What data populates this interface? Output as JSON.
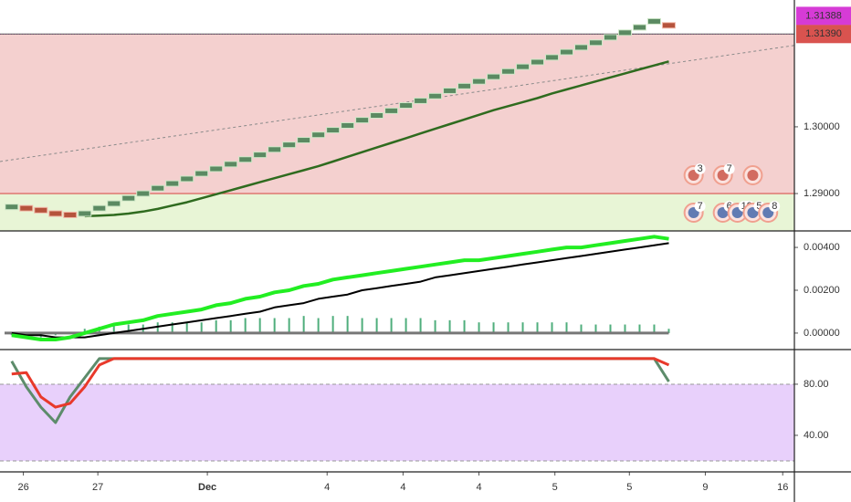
{
  "chart_data": [
    {
      "type": "renko",
      "x": [
        0,
        1,
        2,
        3,
        4,
        5,
        6,
        7,
        8,
        9,
        10,
        11,
        12,
        13,
        14,
        15,
        16,
        17,
        18,
        19,
        20,
        21,
        22,
        23,
        24,
        25,
        26,
        27,
        28,
        29,
        30,
        31,
        32,
        33,
        34,
        35,
        36,
        37,
        38,
        39,
        40,
        41,
        42,
        43,
        44,
        45
      ],
      "values": [
        1.288,
        1.2878,
        1.2875,
        1.287,
        1.2868,
        1.287,
        1.2878,
        1.2885,
        1.2893,
        1.29,
        1.2908,
        1.2915,
        1.2922,
        1.293,
        1.2937,
        1.2944,
        1.2951,
        1.2958,
        1.2966,
        1.2973,
        1.298,
        1.2988,
        1.2995,
        1.3002,
        1.301,
        1.3017,
        1.3024,
        1.3032,
        1.3039,
        1.3046,
        1.3054,
        1.3061,
        1.3068,
        1.3075,
        1.3083,
        1.309,
        1.3097,
        1.3104,
        1.3112,
        1.3119,
        1.3126,
        1.3134,
        1.3141,
        1.3149,
        1.3158,
        1.3152
      ],
      "up_color": "#5b8a62",
      "down_color": "#b5533c",
      "ma": {
        "color": "#2f6b1f",
        "values": [
          null,
          null,
          null,
          null,
          null,
          1.2866,
          1.2867,
          1.2868,
          1.287,
          1.2873,
          1.2877,
          1.2882,
          1.2887,
          1.2893,
          1.2899,
          1.2905,
          1.2911,
          1.2917,
          1.2923,
          1.2929,
          1.2935,
          1.2941,
          1.2948,
          1.2955,
          1.2962,
          1.2969,
          1.2976,
          1.2983,
          1.299,
          1.2997,
          1.3004,
          1.3011,
          1.3018,
          1.3025,
          1.3031,
          1.3037,
          1.3043,
          1.305,
          1.3056,
          1.3062,
          1.3068,
          1.3074,
          1.308,
          1.3086,
          1.3092,
          1.3098
        ]
      },
      "trendline": {
        "x": [
          -0.8,
          53.6
        ],
        "values": [
          1.2948,
          1.3122
        ],
        "color": "#8a8a8a"
      },
      "zones": [
        {
          "range": [
            1.29,
            1.3139
          ],
          "color": "#f4d0cf"
        },
        {
          "range": [
            1.2844,
            1.29
          ],
          "color": "#e8f5d6"
        }
      ],
      "price_tags": [
        {
          "value": 1.31388,
          "label": "1.31388",
          "color": "#d63bd6"
        },
        {
          "value": 1.3139,
          "label": "1.31390",
          "color": "#d9534f"
        }
      ],
      "events_upper": [
        {
          "x": 46.7,
          "label": "3"
        },
        {
          "x": 48.7,
          "label": "7"
        },
        {
          "x": 50.75
        }
      ],
      "events_lower": [
        {
          "x": 46.7,
          "label": "7"
        },
        {
          "x": 48.7,
          "label": "6"
        },
        {
          "x": 49.7,
          "label": "19"
        },
        {
          "x": 50.75,
          "label": "5"
        },
        {
          "x": 51.8,
          "label": "8"
        }
      ],
      "xlim": [
        -0.8,
        53.6
      ],
      "ylim": [
        1.2844,
        1.319
      ],
      "yticks": [
        {
          "value": 1.3,
          "label": "1.30000"
        },
        {
          "value": 1.29,
          "label": "1.29000"
        }
      ]
    },
    {
      "type": "macd",
      "x": [
        0,
        1,
        2,
        3,
        4,
        5,
        6,
        7,
        8,
        9,
        10,
        11,
        12,
        13,
        14,
        15,
        16,
        17,
        18,
        19,
        20,
        21,
        22,
        23,
        24,
        25,
        26,
        27,
        28,
        29,
        30,
        31,
        32,
        33,
        34,
        35,
        36,
        37,
        38,
        39,
        40,
        41,
        42,
        43,
        44,
        45
      ],
      "lines": [
        {
          "color": "#22ee22",
          "values": [
            -0.0001,
            -0.0002,
            -0.0003,
            -0.0003,
            -0.0002,
            0.0,
            0.0002,
            0.0004,
            0.0005,
            0.0006,
            0.0008,
            0.0009,
            0.001,
            0.0011,
            0.0013,
            0.0014,
            0.0016,
            0.0017,
            0.0019,
            0.002,
            0.0022,
            0.0023,
            0.0025,
            0.0026,
            0.0027,
            0.0028,
            0.0029,
            0.003,
            0.0031,
            0.0032,
            0.0033,
            0.0034,
            0.0034,
            0.0035,
            0.0036,
            0.0037,
            0.0038,
            0.0039,
            0.004,
            0.004,
            0.0041,
            0.0042,
            0.0043,
            0.0044,
            0.0045,
            0.0044
          ]
        },
        {
          "color": "#000000",
          "values": [
            0.0,
            -0.0001,
            -0.0001,
            -0.0002,
            -0.0002,
            -0.0002,
            -0.0001,
            0.0,
            0.0001,
            0.0002,
            0.0003,
            0.0004,
            0.0005,
            0.0006,
            0.0007,
            0.0008,
            0.0009,
            0.001,
            0.0012,
            0.0013,
            0.0014,
            0.0016,
            0.0017,
            0.0018,
            0.002,
            0.0021,
            0.0022,
            0.0023,
            0.0024,
            0.0026,
            0.0027,
            0.0028,
            0.0029,
            0.003,
            0.0031,
            0.0032,
            0.0033,
            0.0034,
            0.0035,
            0.0036,
            0.0037,
            0.0038,
            0.0039,
            0.004,
            0.0041,
            0.0042
          ]
        }
      ],
      "histogram": {
        "color": "#4fae7c",
        "values": [
          -0.0001,
          -0.0001,
          -0.0002,
          -0.0001,
          0.0,
          0.0002,
          0.0003,
          0.0004,
          0.0004,
          0.0004,
          0.0005,
          0.0005,
          0.0005,
          0.0005,
          0.0006,
          0.0006,
          0.0007,
          0.0007,
          0.0007,
          0.0007,
          0.0008,
          0.0007,
          0.0008,
          0.0008,
          0.0007,
          0.0007,
          0.0007,
          0.0007,
          0.0007,
          0.0006,
          0.0006,
          0.0006,
          0.0005,
          0.0005,
          0.0005,
          0.0005,
          0.0005,
          0.0005,
          0.0005,
          0.0004,
          0.0004,
          0.0004,
          0.0004,
          0.0004,
          0.0004,
          0.0002
        ]
      },
      "zero_color": "#777777",
      "xlim": [
        -0.8,
        53.6
      ],
      "ylim": [
        -0.00077,
        0.00477
      ],
      "yticks": [
        {
          "value": 0.004,
          "label": "0.00400"
        },
        {
          "value": 0.002,
          "label": "0.00200"
        },
        {
          "value": 0,
          "label": "0.00000"
        }
      ]
    },
    {
      "type": "stochastic",
      "x": [
        0,
        1,
        2,
        3,
        4,
        5,
        6,
        7,
        8,
        9,
        10,
        11,
        12,
        13,
        14,
        15,
        16,
        17,
        18,
        19,
        20,
        21,
        22,
        23,
        24,
        25,
        26,
        27,
        28,
        29,
        30,
        31,
        32,
        33,
        34,
        35,
        36,
        37,
        38,
        39,
        40,
        41,
        42,
        43,
        44,
        45
      ],
      "lines": [
        {
          "color": "#5d8c6b",
          "values": [
            98,
            78,
            62,
            50,
            70,
            85,
            100,
            100,
            100,
            100,
            100,
            100,
            100,
            100,
            100,
            100,
            100,
            100,
            100,
            100,
            100,
            100,
            100,
            100,
            100,
            100,
            100,
            100,
            100,
            100,
            100,
            100,
            100,
            100,
            100,
            100,
            100,
            100,
            100,
            100,
            100,
            100,
            100,
            100,
            100,
            82
          ]
        },
        {
          "color": "#e8392b",
          "values": [
            88,
            89,
            70,
            62,
            65,
            78,
            95,
            100,
            100,
            100,
            100,
            100,
            100,
            100,
            100,
            100,
            100,
            100,
            100,
            100,
            100,
            100,
            100,
            100,
            100,
            100,
            100,
            100,
            100,
            100,
            100,
            100,
            100,
            100,
            100,
            100,
            100,
            100,
            100,
            100,
            100,
            100,
            100,
            100,
            100,
            95
          ]
        }
      ],
      "band": {
        "range": [
          20,
          80
        ],
        "color": "#e8d0fb"
      },
      "xlim": [
        -0.8,
        53.6
      ],
      "ylim": [
        11.4,
        107.1
      ],
      "yticks": [
        {
          "value": 80,
          "label": "80.00"
        },
        {
          "value": 40,
          "label": "40.00"
        }
      ],
      "xticks": [
        {
          "value": 0.8,
          "label": "26"
        },
        {
          "value": 5.9,
          "label": "27"
        },
        {
          "value": 13.4,
          "label": "Dec"
        },
        {
          "value": 21.6,
          "label": "4"
        },
        {
          "value": 26.8,
          "label": "4"
        },
        {
          "value": 32,
          "label": "4"
        },
        {
          "value": 37.2,
          "label": "5"
        },
        {
          "value": 42.3,
          "label": "5"
        },
        {
          "value": 47.5,
          "label": "9"
        },
        {
          "value": 52.8,
          "label": "16"
        }
      ]
    }
  ]
}
